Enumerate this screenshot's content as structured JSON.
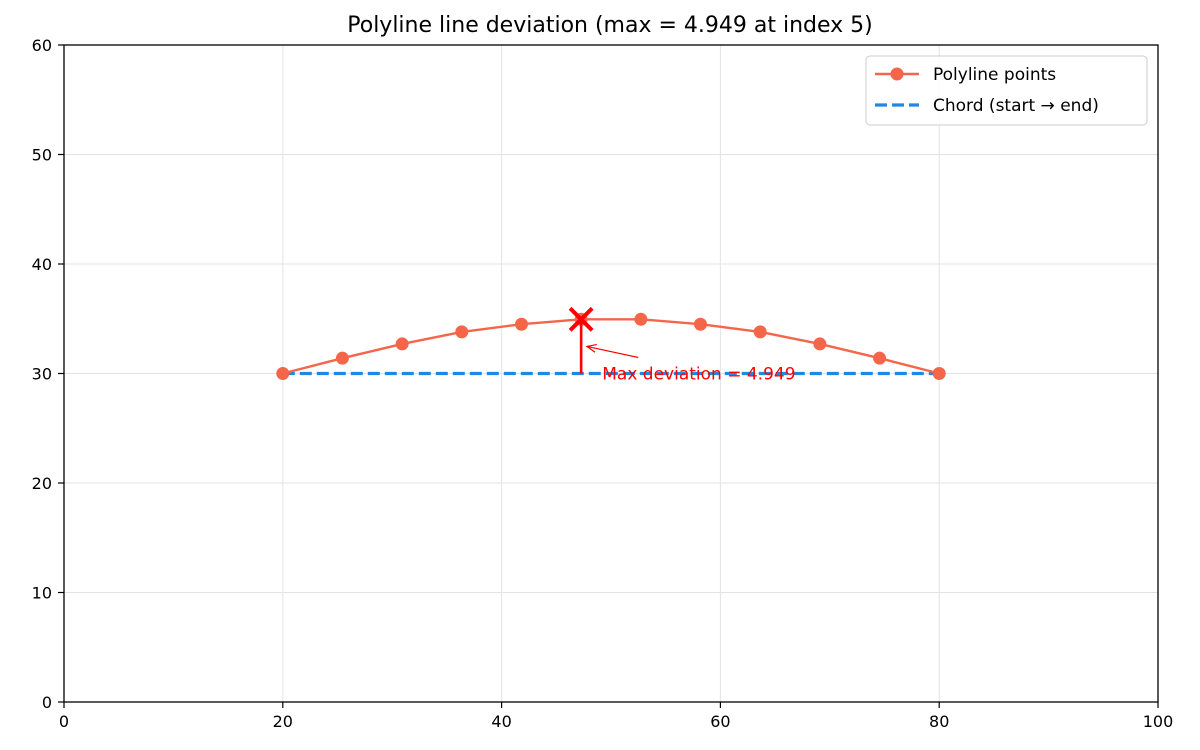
{
  "chart_data": {
    "type": "line",
    "title": "Polyline line deviation  (max = 4.949 at index 5)",
    "xlabel": "",
    "ylabel": "",
    "xlim": [
      0,
      100
    ],
    "ylim": [
      0,
      60
    ],
    "x_ticks": [
      0,
      20,
      40,
      60,
      80,
      100
    ],
    "y_ticks": [
      0,
      10,
      20,
      30,
      40,
      50,
      60
    ],
    "grid": true,
    "legend_position": "top-right",
    "series": [
      {
        "name": "Polyline points",
        "style": "solid line with circle markers",
        "color": "#f4664a",
        "x": [
          20,
          25.45,
          30.91,
          36.36,
          41.82,
          47.27,
          52.73,
          58.18,
          63.64,
          69.09,
          74.55,
          80
        ],
        "y": [
          30,
          31.4,
          32.7,
          33.8,
          34.5,
          34.95,
          34.95,
          34.5,
          33.8,
          32.7,
          31.4,
          30
        ]
      },
      {
        "name": "Chord (start → end)",
        "style": "dashed line",
        "color": "#1e88e5",
        "x": [
          20,
          80
        ],
        "y": [
          30,
          30
        ]
      }
    ],
    "max_point": {
      "index": 5,
      "x": 47.27,
      "y": 34.95,
      "marker": "x",
      "color": "#ff0000"
    },
    "deviation_segment": {
      "x": 47.27,
      "y_from": 30,
      "y_to": 34.95,
      "color": "#ff0000"
    },
    "annotation": {
      "text": "Max deviation = 4.949",
      "text_x": 49.2,
      "text_y": 30,
      "arrow_to_x": 47.8,
      "arrow_to_y": 32.47,
      "color": "#ff0000"
    }
  }
}
